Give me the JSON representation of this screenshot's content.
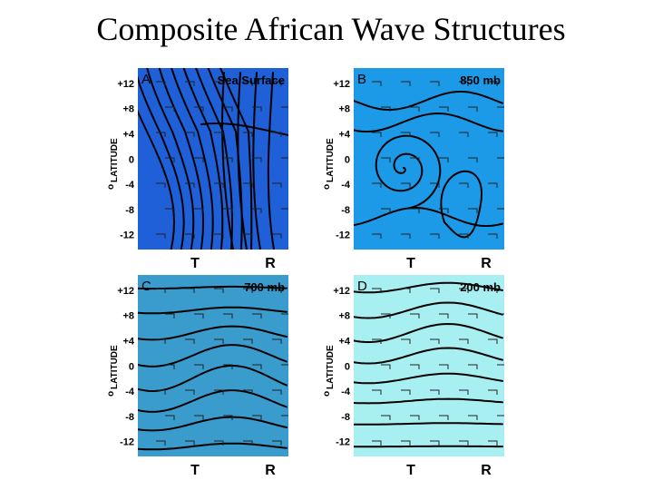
{
  "title": "Composite African Wave Structures",
  "y_axis_label": {
    "superscript": "o",
    "text": "LATITUDE"
  },
  "y_ticks": [
    "+12",
    "+8",
    "+4",
    "0",
    "-4",
    "-8",
    "-12"
  ],
  "x_labels": [
    "T",
    "R"
  ],
  "panels": [
    {
      "letter": "A",
      "level": "Sea Surface"
    },
    {
      "letter": "B",
      "level": "850 mb"
    },
    {
      "letter": "C",
      "level": "700 mb"
    },
    {
      "letter": "D",
      "level": "200 mb"
    }
  ]
}
